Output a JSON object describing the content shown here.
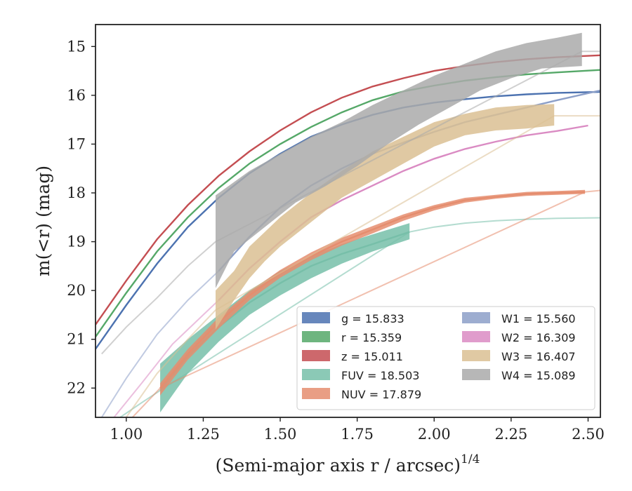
{
  "chart_data": {
    "type": "line",
    "xlabel": "(Semi-major axis r / arcsec)",
    "xlabel_sup": "1/4",
    "ylabel": "m(<r) (mag)",
    "xlim": [
      0.9,
      2.54
    ],
    "ylim": [
      22.6,
      14.55
    ],
    "y_inverted": true,
    "xticks": [
      1.0,
      1.25,
      1.5,
      1.75,
      2.0,
      2.25,
      2.5
    ],
    "xtick_labels": [
      "1.00",
      "1.25",
      "1.50",
      "1.75",
      "2.00",
      "2.25",
      "2.50"
    ],
    "yticks": [
      15,
      16,
      17,
      18,
      19,
      20,
      21,
      22
    ],
    "ytick_labels": [
      "15",
      "16",
      "17",
      "18",
      "19",
      "20",
      "21",
      "22"
    ],
    "grid": false,
    "legend_position": "bottom-right",
    "legend_columns": 2,
    "series": [
      {
        "name": "g",
        "label": "g = 15.833",
        "color": "#4c72b0",
        "style": "line",
        "line": [
          [
            0.9,
            21.2
          ],
          [
            1.0,
            20.3
          ],
          [
            1.1,
            19.45
          ],
          [
            1.2,
            18.7
          ],
          [
            1.3,
            18.1
          ],
          [
            1.4,
            17.6
          ],
          [
            1.5,
            17.2
          ],
          [
            1.6,
            16.85
          ],
          [
            1.7,
            16.6
          ],
          [
            1.8,
            16.4
          ],
          [
            1.9,
            16.25
          ],
          [
            2.0,
            16.15
          ],
          [
            2.1,
            16.08
          ],
          [
            2.2,
            16.02
          ],
          [
            2.3,
            15.98
          ],
          [
            2.4,
            15.95
          ],
          [
            2.54,
            15.93
          ]
        ]
      },
      {
        "name": "r",
        "label": "r = 15.359",
        "color": "#55a868",
        "style": "line",
        "line": [
          [
            0.9,
            20.95
          ],
          [
            1.0,
            20.05
          ],
          [
            1.1,
            19.2
          ],
          [
            1.2,
            18.5
          ],
          [
            1.3,
            17.9
          ],
          [
            1.4,
            17.4
          ],
          [
            1.5,
            17.0
          ],
          [
            1.6,
            16.65
          ],
          [
            1.7,
            16.35
          ],
          [
            1.8,
            16.1
          ],
          [
            1.9,
            15.92
          ],
          [
            2.0,
            15.8
          ],
          [
            2.1,
            15.7
          ],
          [
            2.2,
            15.63
          ],
          [
            2.3,
            15.57
          ],
          [
            2.4,
            15.53
          ],
          [
            2.54,
            15.48
          ]
        ]
      },
      {
        "name": "z",
        "label": "z = 15.011",
        "color": "#c44e52",
        "style": "line",
        "line": [
          [
            0.9,
            20.7
          ],
          [
            1.0,
            19.8
          ],
          [
            1.1,
            18.95
          ],
          [
            1.2,
            18.25
          ],
          [
            1.3,
            17.65
          ],
          [
            1.4,
            17.15
          ],
          [
            1.5,
            16.72
          ],
          [
            1.6,
            16.35
          ],
          [
            1.7,
            16.05
          ],
          [
            1.8,
            15.82
          ],
          [
            1.9,
            15.65
          ],
          [
            2.0,
            15.5
          ],
          [
            2.1,
            15.4
          ],
          [
            2.2,
            15.32
          ],
          [
            2.3,
            15.26
          ],
          [
            2.4,
            15.22
          ],
          [
            2.54,
            15.18
          ]
        ]
      },
      {
        "name": "FUV",
        "label": "FUV = 18.503",
        "color": "#77bfa9",
        "style": "band",
        "line": [
          [
            1.11,
            22.05
          ],
          [
            1.2,
            21.35
          ],
          [
            1.3,
            20.75
          ],
          [
            1.4,
            20.25
          ],
          [
            1.5,
            19.85
          ],
          [
            1.6,
            19.5
          ],
          [
            1.7,
            19.25
          ],
          [
            1.8,
            19.05
          ],
          [
            1.92,
            18.8
          ]
        ],
        "upper": [
          [
            1.11,
            21.5
          ],
          [
            1.2,
            21.0
          ],
          [
            1.3,
            20.5
          ],
          [
            1.4,
            20.0
          ],
          [
            1.5,
            19.6
          ],
          [
            1.6,
            19.3
          ],
          [
            1.7,
            19.05
          ],
          [
            1.8,
            18.85
          ],
          [
            1.92,
            18.62
          ]
        ],
        "lower": [
          [
            1.11,
            22.5
          ],
          [
            1.2,
            21.7
          ],
          [
            1.3,
            21.05
          ],
          [
            1.4,
            20.5
          ],
          [
            1.5,
            20.1
          ],
          [
            1.6,
            19.75
          ],
          [
            1.7,
            19.45
          ],
          [
            1.8,
            19.2
          ],
          [
            1.92,
            18.95
          ]
        ],
        "faint": [
          [
            0.98,
            22.6
          ],
          [
            1.05,
            22.3
          ],
          [
            1.11,
            22.05
          ],
          [
            1.92,
            18.8
          ],
          [
            2.0,
            18.7
          ],
          [
            2.1,
            18.62
          ],
          [
            2.2,
            18.57
          ],
          [
            2.3,
            18.54
          ],
          [
            2.4,
            18.52
          ],
          [
            2.54,
            18.51
          ]
        ]
      },
      {
        "name": "NUV",
        "label": "NUV = 17.879",
        "color": "#e58d6e",
        "style": "band",
        "line": [
          [
            1.11,
            22.0
          ],
          [
            1.2,
            21.3
          ],
          [
            1.3,
            20.65
          ],
          [
            1.4,
            20.1
          ],
          [
            1.5,
            19.65
          ],
          [
            1.6,
            19.3
          ],
          [
            1.7,
            19.0
          ],
          [
            1.8,
            18.75
          ],
          [
            1.9,
            18.5
          ],
          [
            2.0,
            18.3
          ],
          [
            2.1,
            18.15
          ],
          [
            2.2,
            18.08
          ],
          [
            2.3,
            18.02
          ],
          [
            2.4,
            18.0
          ],
          [
            2.49,
            17.98
          ]
        ],
        "upper": [
          [
            1.11,
            21.9
          ],
          [
            1.2,
            21.2
          ],
          [
            1.3,
            20.55
          ],
          [
            1.4,
            20.02
          ],
          [
            1.5,
            19.58
          ],
          [
            1.6,
            19.22
          ],
          [
            1.7,
            18.92
          ],
          [
            1.8,
            18.68
          ],
          [
            1.9,
            18.44
          ],
          [
            2.0,
            18.25
          ],
          [
            2.1,
            18.1
          ],
          [
            2.2,
            18.04
          ],
          [
            2.3,
            17.98
          ],
          [
            2.4,
            17.96
          ],
          [
            2.49,
            17.94
          ]
        ],
        "lower": [
          [
            1.11,
            22.15
          ],
          [
            1.2,
            21.42
          ],
          [
            1.3,
            20.78
          ],
          [
            1.4,
            20.2
          ],
          [
            1.5,
            19.74
          ],
          [
            1.6,
            19.38
          ],
          [
            1.7,
            19.08
          ],
          [
            1.8,
            18.83
          ],
          [
            1.9,
            18.57
          ],
          [
            2.0,
            18.36
          ],
          [
            2.1,
            18.2
          ],
          [
            2.2,
            18.12
          ],
          [
            2.3,
            18.06
          ],
          [
            2.4,
            18.04
          ],
          [
            2.49,
            18.02
          ]
        ],
        "faint": [
          [
            1.02,
            22.6
          ],
          [
            1.11,
            22.0
          ],
          [
            2.49,
            17.98
          ],
          [
            2.54,
            17.95
          ]
        ]
      },
      {
        "name": "W1",
        "label": "W1 = 15.560",
        "color": "#8c9fc8",
        "style": "line",
        "line": [
          [
            1.3,
            19.6
          ],
          [
            1.4,
            18.9
          ],
          [
            1.5,
            18.3
          ],
          [
            1.6,
            17.85
          ],
          [
            1.7,
            17.5
          ],
          [
            1.8,
            17.2
          ],
          [
            1.9,
            16.97
          ],
          [
            2.0,
            16.75
          ],
          [
            2.1,
            16.55
          ],
          [
            2.2,
            16.4
          ],
          [
            2.3,
            16.25
          ],
          [
            2.4,
            16.1
          ],
          [
            2.54,
            15.9
          ]
        ],
        "faint": [
          [
            0.92,
            22.6
          ],
          [
            1.0,
            21.8
          ],
          [
            1.1,
            20.9
          ],
          [
            1.2,
            20.2
          ],
          [
            1.3,
            19.6
          ]
        ]
      },
      {
        "name": "W2",
        "label": "W2 = 16.309",
        "color": "#da8bc3",
        "style": "line",
        "line": [
          [
            1.3,
            20.2
          ],
          [
            1.4,
            19.55
          ],
          [
            1.5,
            19.0
          ],
          [
            1.6,
            18.5
          ],
          [
            1.7,
            18.15
          ],
          [
            1.8,
            17.85
          ],
          [
            1.9,
            17.55
          ],
          [
            2.0,
            17.3
          ],
          [
            2.1,
            17.1
          ],
          [
            2.2,
            16.95
          ],
          [
            2.3,
            16.82
          ],
          [
            2.4,
            16.73
          ],
          [
            2.5,
            16.62
          ]
        ],
        "faint": [
          [
            0.96,
            22.6
          ],
          [
            1.05,
            21.9
          ],
          [
            1.15,
            21.1
          ],
          [
            1.25,
            20.5
          ],
          [
            1.3,
            20.2
          ]
        ]
      },
      {
        "name": "W3",
        "label": "W3 = 16.407",
        "color": "#dbbf93",
        "style": "band",
        "upper": [
          [
            1.29,
            20.0
          ],
          [
            1.35,
            19.6
          ],
          [
            1.4,
            19.1
          ],
          [
            1.45,
            18.8
          ],
          [
            1.5,
            18.5
          ],
          [
            1.6,
            18.0
          ],
          [
            1.7,
            17.55
          ],
          [
            1.8,
            17.15
          ],
          [
            1.9,
            16.85
          ],
          [
            2.0,
            16.55
          ],
          [
            2.1,
            16.38
          ],
          [
            2.2,
            16.25
          ],
          [
            2.3,
            16.2
          ],
          [
            2.39,
            16.18
          ]
        ],
        "lower": [
          [
            1.29,
            20.8
          ],
          [
            1.35,
            20.2
          ],
          [
            1.4,
            19.75
          ],
          [
            1.45,
            19.4
          ],
          [
            1.5,
            19.1
          ],
          [
            1.6,
            18.6
          ],
          [
            1.7,
            18.1
          ],
          [
            1.8,
            17.75
          ],
          [
            1.9,
            17.4
          ],
          [
            2.0,
            17.05
          ],
          [
            2.1,
            16.82
          ],
          [
            2.2,
            16.72
          ],
          [
            2.3,
            16.68
          ],
          [
            2.39,
            16.62
          ]
        ],
        "faint": [
          [
            1.0,
            22.6
          ],
          [
            1.1,
            21.7
          ],
          [
            1.2,
            21.0
          ],
          [
            1.29,
            20.4
          ],
          [
            2.39,
            16.42
          ],
          [
            2.54,
            16.42
          ]
        ]
      },
      {
        "name": "W4",
        "label": "W4 = 15.089",
        "color": "#aaaaaa",
        "style": "band",
        "upper": [
          [
            1.29,
            18.05
          ],
          [
            1.4,
            17.55
          ],
          [
            1.5,
            17.2
          ],
          [
            1.6,
            16.85
          ],
          [
            1.7,
            16.55
          ],
          [
            1.8,
            16.2
          ],
          [
            1.9,
            15.9
          ],
          [
            2.0,
            15.6
          ],
          [
            2.1,
            15.35
          ],
          [
            2.2,
            15.1
          ],
          [
            2.3,
            14.93
          ],
          [
            2.4,
            14.82
          ],
          [
            2.48,
            14.72
          ]
        ],
        "lower": [
          [
            1.29,
            19.95
          ],
          [
            1.35,
            19.2
          ],
          [
            1.45,
            18.7
          ],
          [
            1.55,
            18.2
          ],
          [
            1.65,
            17.85
          ],
          [
            1.75,
            17.45
          ],
          [
            1.85,
            17.0
          ],
          [
            1.95,
            16.6
          ],
          [
            2.05,
            16.25
          ],
          [
            2.15,
            15.9
          ],
          [
            2.25,
            15.65
          ],
          [
            2.35,
            15.45
          ],
          [
            2.48,
            15.4
          ]
        ],
        "faint": [
          [
            0.92,
            21.3
          ],
          [
            1.0,
            20.75
          ],
          [
            1.1,
            20.15
          ],
          [
            1.2,
            19.5
          ],
          [
            1.29,
            19.0
          ],
          [
            2.48,
            15.1
          ],
          [
            2.54,
            15.1
          ]
        ]
      }
    ]
  }
}
